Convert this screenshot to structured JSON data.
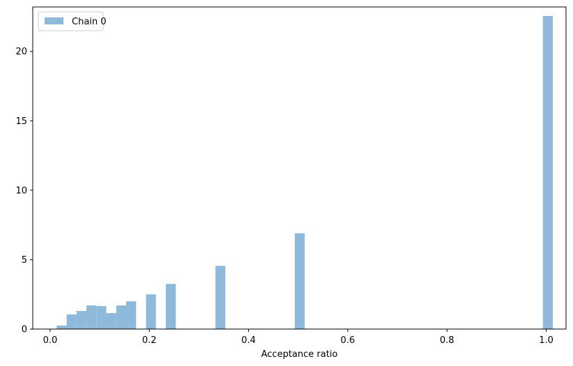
{
  "chart_data": {
    "type": "bar",
    "subtype": "histogram",
    "title": "",
    "xlabel": "Acceptance ratio",
    "ylabel": "",
    "xlim": [
      -0.035,
      1.04
    ],
    "ylim": [
      0,
      23.2
    ],
    "xticks": [
      "0.0",
      "0.2",
      "0.4",
      "0.6",
      "0.8",
      "1.0"
    ],
    "yticks": [
      "0",
      "5",
      "10",
      "15",
      "20"
    ],
    "grid": false,
    "legend_position": "top-left",
    "color": "#8fb9da",
    "series": [
      {
        "name": "Chain 0",
        "bins": [
          {
            "x0": 0.0133,
            "x1": 0.0333,
            "value": 0.25
          },
          {
            "x0": 0.0333,
            "x1": 0.0533,
            "value": 1.05
          },
          {
            "x0": 0.0533,
            "x1": 0.0733,
            "value": 1.3
          },
          {
            "x0": 0.0733,
            "x1": 0.0933,
            "value": 1.7
          },
          {
            "x0": 0.0933,
            "x1": 0.1133,
            "value": 1.65
          },
          {
            "x0": 0.1133,
            "x1": 0.1333,
            "value": 1.15
          },
          {
            "x0": 0.1333,
            "x1": 0.1533,
            "value": 1.7
          },
          {
            "x0": 0.1533,
            "x1": 0.1733,
            "value": 2.0
          },
          {
            "x0": 0.1933,
            "x1": 0.2133,
            "value": 2.5
          },
          {
            "x0": 0.2333,
            "x1": 0.2533,
            "value": 3.25
          },
          {
            "x0": 0.3333,
            "x1": 0.3533,
            "value": 4.55
          },
          {
            "x0": 0.4933,
            "x1": 0.5133,
            "value": 6.9
          },
          {
            "x0": 0.9933,
            "x1": 1.0133,
            "value": 22.55
          }
        ]
      }
    ]
  }
}
